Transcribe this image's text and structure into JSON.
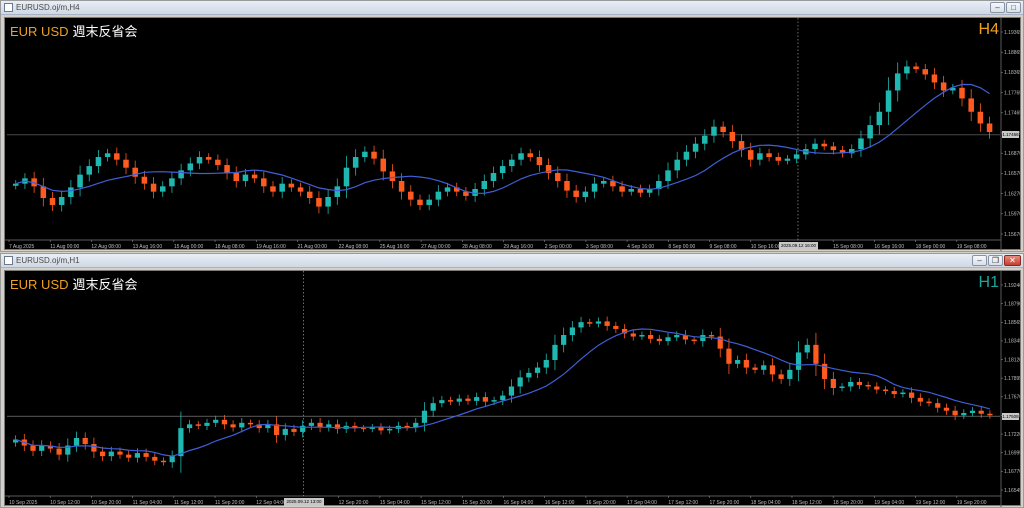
{
  "windows": [
    {
      "id": "h4",
      "title": "EURUSD.oj/m,H4",
      "symbol_label": "EUR USD",
      "jp_label": "週末反省会",
      "timeframe_label": "H4",
      "current_price": "1.17466",
      "cursor_time": "2025.09.12 16:00",
      "colors": {
        "bull": "#1fb8b0",
        "bear": "#ff5a1f",
        "ma": "#3f5fd8",
        "label": "#f0a020",
        "tf": "#f0a020"
      },
      "price_axis": [
        "1.19365",
        "1.18865",
        "1.18365",
        "1.17765",
        "1.17465",
        "1.17165",
        "1.16870",
        "1.16570",
        "1.16270",
        "1.15970",
        "1.15670"
      ],
      "time_axis": [
        "7 Aug 2025",
        "11 Aug 00:00",
        "12 Aug 08:00",
        "13 Aug 16:00",
        "15 Aug 00:00",
        "18 Aug 08:00",
        "19 Aug 16:00",
        "21 Aug 00:00",
        "22 Aug 08:00",
        "25 Aug 16:00",
        "27 Aug 00:00",
        "28 Aug 08:00",
        "29 Aug 16:00",
        "2 Sep 00:00",
        "3 Sep 08:00",
        "4 Sep 16:00",
        "8 Sep 00:00",
        "9 Sep 08:00",
        "10 Sep 16:00",
        "2025.09.12 16:00",
        "15 Sep 08:00",
        "16 Sep 16:00",
        "18 Sep 00:00",
        "19 Sep 08:00"
      ],
      "chart_data": {
        "type": "candlestick",
        "ylim": [
          1.1553,
          1.1951
        ],
        "closes": [
          1.1655,
          1.1665,
          1.165,
          1.1628,
          1.1615,
          1.163,
          1.1648,
          1.1672,
          1.1688,
          1.1705,
          1.1712,
          1.17,
          1.1685,
          1.1668,
          1.1655,
          1.164,
          1.165,
          1.1665,
          1.168,
          1.1693,
          1.1705,
          1.17,
          1.169,
          1.1675,
          1.166,
          1.1672,
          1.1665,
          1.165,
          1.164,
          1.1655,
          1.1648,
          1.164,
          1.1628,
          1.1612,
          1.163,
          1.165,
          1.1685,
          1.1705,
          1.1715,
          1.1702,
          1.1678,
          1.166,
          1.164,
          1.1625,
          1.1615,
          1.1625,
          1.164,
          1.1648,
          1.164,
          1.1632,
          1.1645,
          1.166,
          1.1675,
          1.1688,
          1.17,
          1.1712,
          1.1705,
          1.169,
          1.1675,
          1.166,
          1.1642,
          1.163,
          1.164,
          1.1655,
          1.166,
          1.165,
          1.164,
          1.1645,
          1.1638,
          1.1645,
          1.166,
          1.168,
          1.17,
          1.1715,
          1.173,
          1.1745,
          1.1762,
          1.1752,
          1.1735,
          1.1718,
          1.17,
          1.1712,
          1.1705,
          1.1698,
          1.1702,
          1.171,
          1.172,
          1.173,
          1.1725,
          1.1718,
          1.1712,
          1.172,
          1.174,
          1.1765,
          1.179,
          1.183,
          1.1862,
          1.1875,
          1.187,
          1.186,
          1.1845,
          1.183,
          1.1835,
          1.1815,
          1.179,
          1.1768,
          1.1752
        ]
      }
    },
    {
      "id": "h1",
      "title": "EURUSD.oj/m,H1",
      "symbol_label": "EUR USD",
      "jp_label": "週末反省会",
      "timeframe_label": "H1",
      "current_price": "1.17508",
      "cursor_time": "2025.09.12 13:00",
      "colors": {
        "bull": "#1fb8b0",
        "bear": "#ff5a1f",
        "ma": "#3f5fd8",
        "label": "#f0a020",
        "tf": "#1aa89a"
      },
      "price_axis": [
        "1.19240",
        "1.18790",
        "1.18565",
        "1.18345",
        "1.18120",
        "1.17895",
        "1.17670",
        "1.17445",
        "1.17220",
        "1.16995",
        "1.16770",
        "1.16545"
      ],
      "time_axis": [
        "10 Sep 2025",
        "10 Sep 12:00",
        "10 Sep 20:00",
        "11 Sep 04:00",
        "11 Sep 12:00",
        "11 Sep 20:00",
        "12 Sep 04:00",
        "2025.09.12 13:00",
        "12 Sep 20:00",
        "15 Sep 04:00",
        "15 Sep 12:00",
        "15 Sep 20:00",
        "16 Sep 04:00",
        "16 Sep 12:00",
        "16 Sep 20:00",
        "17 Sep 04:00",
        "17 Sep 12:00",
        "17 Sep 20:00",
        "18 Sep 04:00",
        "18 Sep 12:00",
        "18 Sep 20:00",
        "19 Sep 04:00",
        "19 Sep 12:00",
        "19 Sep 20:00"
      ],
      "chart_data": {
        "type": "candlestick",
        "ylim": [
          1.1648,
          1.1932
        ],
        "closes": [
          1.172,
          1.1712,
          1.1705,
          1.1712,
          1.1708,
          1.17,
          1.1712,
          1.1722,
          1.1714,
          1.1704,
          1.1698,
          1.1704,
          1.17,
          1.1696,
          1.1702,
          1.1697,
          1.1692,
          1.169,
          1.1698,
          1.1735,
          1.174,
          1.1738,
          1.1742,
          1.1746,
          1.174,
          1.1736,
          1.1742,
          1.174,
          1.1735,
          1.174,
          1.1726,
          1.1734,
          1.173,
          1.1738,
          1.1742,
          1.1736,
          1.174,
          1.1734,
          1.1738,
          1.1735,
          1.1734,
          1.1736,
          1.1732,
          1.1734,
          1.1738,
          1.1736,
          1.1742,
          1.1758,
          1.1768,
          1.1772,
          1.177,
          1.1774,
          1.1771,
          1.1776,
          1.177,
          1.1772,
          1.1778,
          1.179,
          1.1802,
          1.1808,
          1.1815,
          1.1825,
          1.1845,
          1.1858,
          1.1868,
          1.1875,
          1.1873,
          1.1876,
          1.187,
          1.1866,
          1.186,
          1.1856,
          1.1858,
          1.1853,
          1.185,
          1.1855,
          1.1858,
          1.1852,
          1.185,
          1.1858,
          1.1856,
          1.184,
          1.182,
          1.1825,
          1.1815,
          1.1812,
          1.1818,
          1.1806,
          1.18,
          1.1812,
          1.1835,
          1.1845,
          1.182,
          1.18,
          1.1788,
          1.179,
          1.1796,
          1.1792,
          1.179,
          1.1786,
          1.1784,
          1.178,
          1.1782,
          1.1775,
          1.177,
          1.1768,
          1.1762,
          1.1758,
          1.1752,
          1.1755,
          1.1758,
          1.1754,
          1.1752
        ]
      }
    }
  ]
}
